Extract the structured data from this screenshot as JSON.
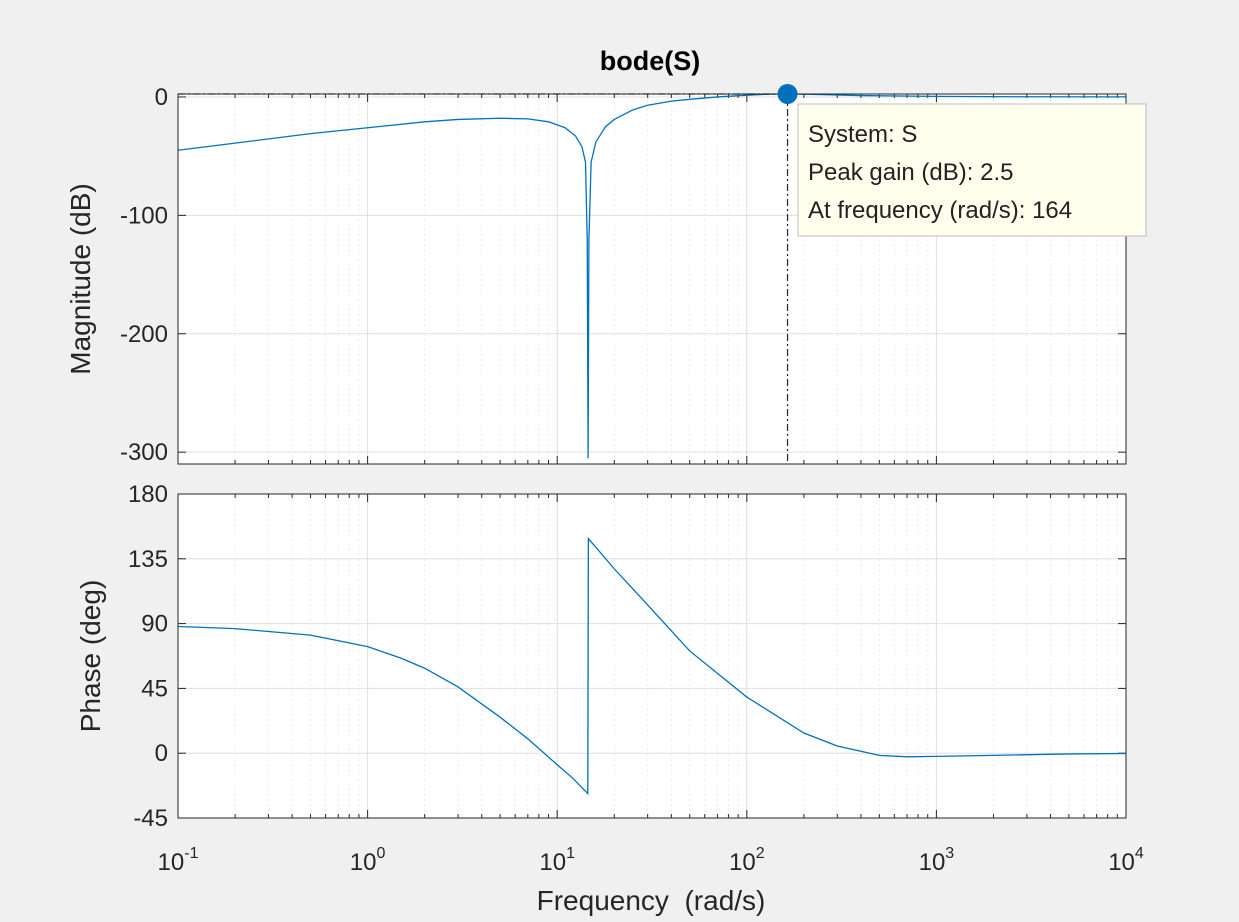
{
  "chart_data": [
    {
      "type": "line",
      "scale": {
        "x": "log",
        "y": "linear"
      },
      "title": "bode(S)",
      "xlabel": "",
      "ylabel": "Magnitude (dB)",
      "xlim": [
        0.1,
        10000
      ],
      "ylim": [
        -310,
        2.5
      ],
      "yticks": [
        0,
        -100,
        -200,
        -300
      ],
      "grid": true,
      "line_color": "#0072BD",
      "series": [
        {
          "x": [
            0.1,
            0.2,
            0.5,
            1,
            2,
            3,
            5,
            7,
            9,
            11,
            12.5,
            13.5,
            14.1,
            14.4,
            14.55,
            14.7,
            15.1,
            16,
            18,
            20,
            25,
            30,
            40,
            50,
            70,
            100,
            130,
            164,
            250,
            400,
            1000,
            3000,
            10000
          ],
          "y": [
            -45,
            -39,
            -31,
            -26,
            -21,
            -19,
            -18,
            -18.5,
            -21,
            -26,
            -33,
            -42,
            -55,
            -120,
            -305,
            -120,
            -55,
            -38,
            -25,
            -19,
            -11,
            -7,
            -3.5,
            -2,
            0,
            1.5,
            2.3,
            2.5,
            2,
            1.2,
            0.5,
            0.15,
            0.05
          ]
        }
      ],
      "marker": {
        "x": 164,
        "y": 2.5,
        "color": "#0072BD"
      },
      "datatip": {
        "line1": "System: S",
        "line2": "Peak gain (dB): 2.5",
        "line3": "At frequency (rad/s): 164"
      }
    },
    {
      "type": "line",
      "scale": {
        "x": "log",
        "y": "linear"
      },
      "xlabel": "Frequency  (rad/s)",
      "ylabel": "Phase (deg)",
      "xlim": [
        0.1,
        10000
      ],
      "ylim": [
        -45,
        180
      ],
      "yticks": [
        180,
        135,
        90,
        45,
        0,
        -45
      ],
      "xticks": [
        {
          "base": "10",
          "exp": "-1",
          "value": 0.1
        },
        {
          "base": "10",
          "exp": "0",
          "value": 1
        },
        {
          "base": "10",
          "exp": "1",
          "value": 10
        },
        {
          "base": "10",
          "exp": "2",
          "value": 100
        },
        {
          "base": "10",
          "exp": "3",
          "value": 1000
        },
        {
          "base": "10",
          "exp": "4",
          "value": 10000
        }
      ],
      "grid": true,
      "line_color": "#0072BD",
      "series": [
        {
          "x": [
            0.1,
            0.2,
            0.5,
            1,
            1.5,
            2,
            3,
            5,
            7,
            10,
            12,
            14.5,
            14.6,
            16,
            20,
            30,
            50,
            100,
            200,
            300,
            500,
            700,
            1000,
            2000,
            5000,
            10000
          ],
          "y": [
            88,
            86.5,
            82,
            74,
            66,
            59,
            46,
            25,
            10,
            -8,
            -17,
            -28,
            149,
            143,
            128,
            103,
            71,
            39,
            14,
            5,
            -1.5,
            -2.5,
            -2.2,
            -1.5,
            -0.5,
            -0.2
          ]
        }
      ]
    }
  ]
}
